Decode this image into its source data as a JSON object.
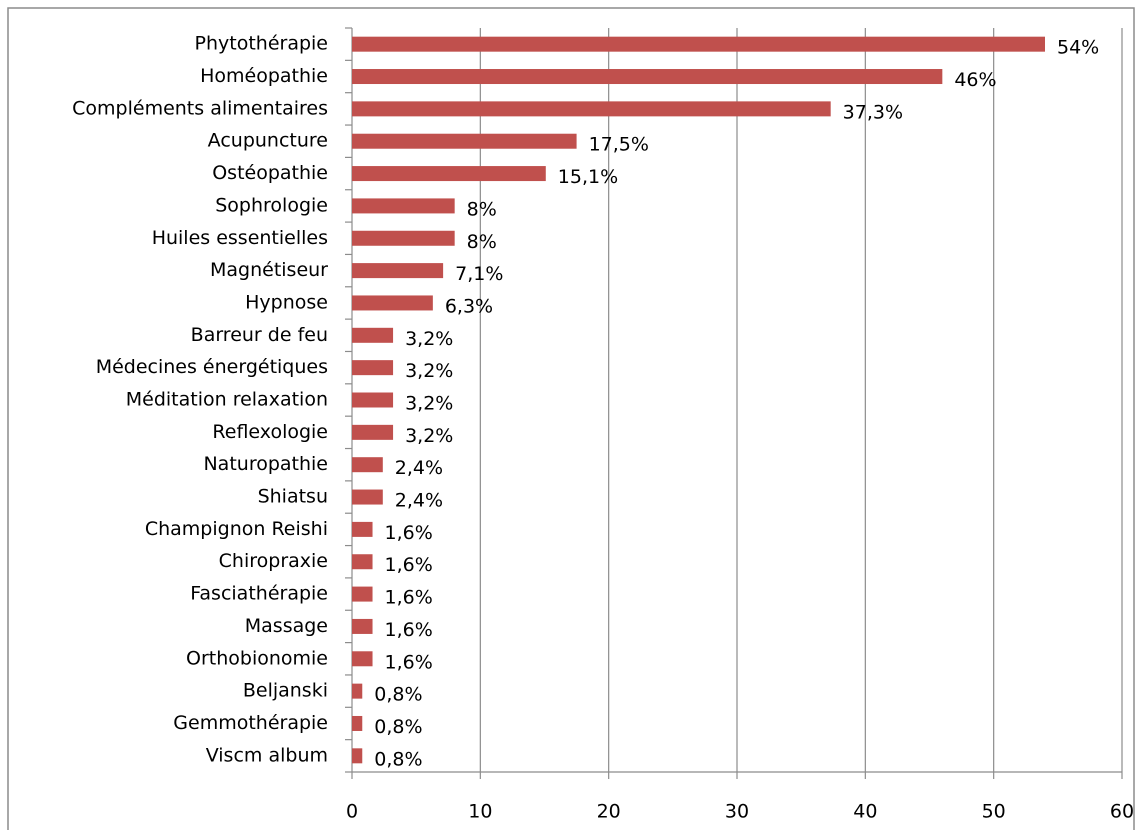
{
  "chart_data": {
    "type": "bar",
    "orientation": "horizontal",
    "categories": [
      "Phytothérapie",
      "Homéopathie",
      "Compléments alimentaires",
      "Acupuncture",
      "Ostéopathie",
      "Sophrologie",
      "Huiles essentielles",
      "Magnétiseur",
      "Hypnose",
      "Barreur de feu",
      "Médecines énergétiques",
      "Méditation relaxation",
      "Reflexologie",
      "Naturopathie",
      "Shiatsu",
      "Champignon Reishi",
      "Chiropraxie",
      "Fasciathérapie",
      "Massage",
      "Orthobionomie",
      "Beljanski",
      "Gemmothérapie",
      "Viscm album"
    ],
    "values": [
      54,
      46,
      37.3,
      17.5,
      15.1,
      8,
      8,
      7.1,
      6.3,
      3.2,
      3.2,
      3.2,
      3.2,
      2.4,
      2.4,
      1.6,
      1.6,
      1.6,
      1.6,
      1.6,
      0.8,
      0.8,
      0.8
    ],
    "value_labels": [
      "54%",
      "46%",
      "37,3%",
      "17,5%",
      "15,1%",
      "8%",
      "8%",
      "7,1%",
      "6,3%",
      "3,2%",
      "3,2%",
      "3,2%",
      "3,2%",
      "2,4%",
      "2,4%",
      "1,6%",
      "1,6%",
      "1,6%",
      "1,6%",
      "1,6%",
      "0,8%",
      "0,8%",
      "0,8%"
    ],
    "color": "#c0504d",
    "xlim": [
      0,
      60
    ],
    "xticks": [
      0,
      10,
      20,
      30,
      40,
      50,
      60
    ],
    "grid": true
  }
}
